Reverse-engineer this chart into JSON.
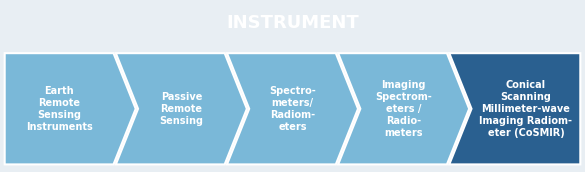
{
  "title": "INSTRUMENT",
  "title_bg": "#3080b0",
  "title_text_color": "#ffffff",
  "arrow_labels": [
    "Earth\nRemote\nSensing\nInstruments",
    "Passive\nRemote\nSensing",
    "Spectro-\nmeters/\nRadiom-\neters",
    "Imaging\nSpectrom-\neters /\nRadio-\nmeters",
    "Conical\nScanning\nMillimeter-wave\nImaging Radiom-\neter (CoSMIR)"
  ],
  "arrow_colors": [
    "#7ab8d8",
    "#7ab8d8",
    "#7ab8d8",
    "#7ab8d8",
    "#2a6090"
  ],
  "fig_bg": "#e8eef3",
  "text_color": "#ffffff",
  "fig_width": 5.85,
  "fig_height": 1.72,
  "dpi": 100
}
